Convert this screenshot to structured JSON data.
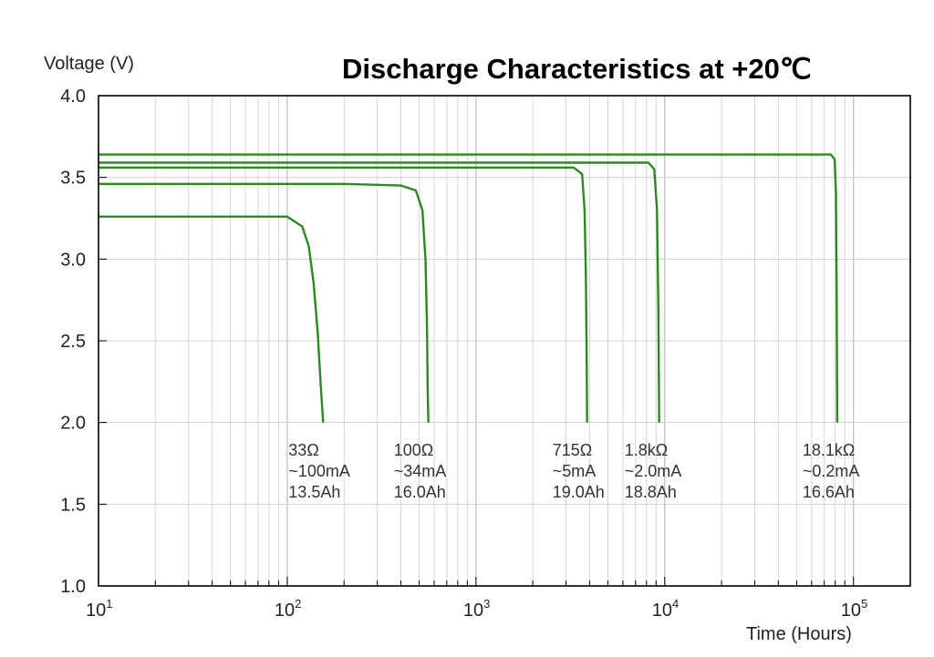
{
  "chart_data": {
    "type": "line",
    "title": "Discharge Characteristics at +20℃",
    "ylabel": "Voltage (V)",
    "xlabel": "Time (Hours)",
    "xscale": "log",
    "xlim": [
      10,
      200000
    ],
    "ylim": [
      1.0,
      4.0
    ],
    "grid": true,
    "yticks": [
      "4.0",
      "3.5",
      "3.0",
      "2.5",
      "2.0",
      "1.5",
      "1.0"
    ],
    "xticks": [
      {
        "base": "10",
        "exp": "1"
      },
      {
        "base": "10",
        "exp": "2"
      },
      {
        "base": "10",
        "exp": "3"
      },
      {
        "base": "10",
        "exp": "4"
      },
      {
        "base": "10",
        "exp": "5"
      }
    ],
    "line_color": "#2b8a1f",
    "series": [
      {
        "x": [
          10,
          50,
          100,
          120,
          130,
          138,
          145,
          150,
          155
        ],
        "y": [
          3.26,
          3.26,
          3.26,
          3.2,
          3.08,
          2.85,
          2.55,
          2.25,
          2.0
        ],
        "annotation": [
          "33Ω",
          "~100mA",
          "13.5Ah"
        ]
      },
      {
        "x": [
          10,
          200,
          400,
          480,
          520,
          540,
          550,
          555,
          560
        ],
        "y": [
          3.46,
          3.46,
          3.45,
          3.42,
          3.3,
          3.0,
          2.6,
          2.2,
          2.0
        ],
        "annotation": [
          "100Ω",
          "~34mA",
          "16.0Ah"
        ]
      },
      {
        "x": [
          10,
          1000,
          3300,
          3650,
          3760,
          3820,
          3860,
          3880
        ],
        "y": [
          3.56,
          3.56,
          3.56,
          3.52,
          3.3,
          2.9,
          2.4,
          2.0
        ],
        "annotation": [
          "715Ω",
          "~5mA",
          "19.0Ah"
        ]
      },
      {
        "x": [
          10,
          2000,
          8200,
          8800,
          9100,
          9250,
          9350
        ],
        "y": [
          3.59,
          3.59,
          3.59,
          3.55,
          3.3,
          2.7,
          2.0
        ],
        "annotation": [
          "1.8kΩ",
          "~2.0mA",
          "18.8Ah"
        ]
      },
      {
        "x": [
          10,
          10000,
          76000,
          79500,
          80800,
          81500,
          82000
        ],
        "y": [
          3.64,
          3.64,
          3.64,
          3.61,
          3.4,
          2.8,
          2.0
        ],
        "annotation": [
          "18.1kΩ",
          "~0.2mA",
          "16.6Ah"
        ]
      }
    ]
  }
}
